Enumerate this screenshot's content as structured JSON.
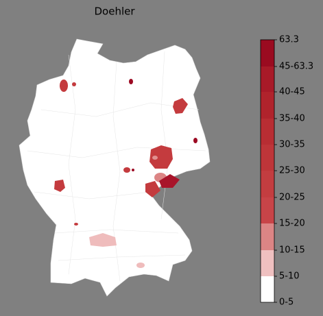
{
  "map": {
    "title": "Doehler"
  },
  "colorbar": {
    "labels": [
      "63.3",
      "45-63.3",
      "40-45",
      "35-40",
      "30-35",
      "25-30",
      "20-25",
      "15-20",
      "10-15",
      "5-10",
      "0-5"
    ]
  }
}
